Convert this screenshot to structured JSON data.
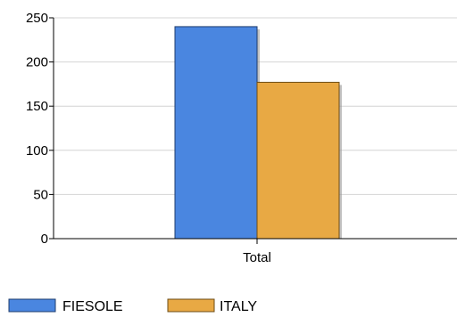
{
  "chart_data": {
    "type": "bar",
    "categories": [
      "Total"
    ],
    "series": [
      {
        "name": "FIESOLE",
        "values": [
          240
        ],
        "color": "#4a86e0"
      },
      {
        "name": "ITALY",
        "values": [
          177
        ],
        "color": "#e8a944"
      }
    ],
    "ylim": [
      0,
      250
    ],
    "yticks": [
      "0",
      "50",
      "100",
      "150",
      "200",
      "250"
    ],
    "grid": true,
    "legend_position": "bottom-left"
  }
}
